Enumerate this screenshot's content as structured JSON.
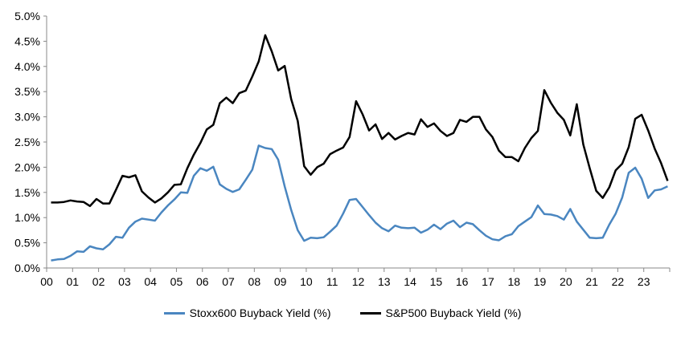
{
  "chart_data": {
    "type": "line",
    "title": "",
    "xlabel": "",
    "ylabel": "",
    "xlim": [
      2000,
      2024
    ],
    "ylim": [
      0,
      5
    ],
    "y_tick_step": 0.5,
    "y_tick_format": "percent-1dp",
    "x_ticks": [
      2000,
      2001,
      2002,
      2003,
      2004,
      2005,
      2006,
      2007,
      2008,
      2009,
      2010,
      2011,
      2012,
      2013,
      2014,
      2015,
      2016,
      2017,
      2018,
      2019,
      2020,
      2021,
      2022,
      2023
    ],
    "x_tick_labels": [
      "00",
      "01",
      "02",
      "03",
      "04",
      "05",
      "06",
      "07",
      "08",
      "09",
      "10",
      "11",
      "12",
      "13",
      "14",
      "15",
      "16",
      "17",
      "18",
      "19",
      "20",
      "21",
      "22",
      "23"
    ],
    "grid": false,
    "legend_position": "bottom",
    "frequency": "quarterly",
    "series": [
      {
        "name": "Stoxx600 Buyback Yield (%)",
        "color": "#4a86c0",
        "values": [
          0.15,
          0.17,
          0.18,
          0.24,
          0.33,
          0.32,
          0.43,
          0.39,
          0.37,
          0.47,
          0.62,
          0.6,
          0.8,
          0.92,
          0.98,
          0.96,
          0.94,
          1.1,
          1.24,
          1.36,
          1.5,
          1.49,
          1.83,
          1.98,
          1.93,
          2.01,
          1.66,
          1.57,
          1.51,
          1.56,
          1.75,
          1.95,
          2.43,
          2.38,
          2.36,
          2.15,
          1.62,
          1.15,
          0.75,
          0.54,
          0.6,
          0.59,
          0.61,
          0.72,
          0.84,
          1.08,
          1.35,
          1.37,
          1.21,
          1.05,
          0.9,
          0.79,
          0.73,
          0.84,
          0.8,
          0.79,
          0.8,
          0.7,
          0.76,
          0.86,
          0.77,
          0.88,
          0.94,
          0.81,
          0.9,
          0.87,
          0.75,
          0.64,
          0.57,
          0.55,
          0.63,
          0.67,
          0.83,
          0.92,
          1.01,
          1.24,
          1.07,
          1.06,
          1.03,
          0.96,
          1.17,
          0.92,
          0.76,
          0.6,
          0.59,
          0.6,
          0.86,
          1.08,
          1.4,
          1.89,
          1.99,
          1.77,
          1.39,
          1.54,
          1.56,
          1.62
        ]
      },
      {
        "name": "S&P500 Buyback Yield (%)",
        "color": "#000000",
        "values": [
          1.3,
          1.3,
          1.31,
          1.34,
          1.32,
          1.31,
          1.23,
          1.37,
          1.28,
          1.28,
          1.55,
          1.83,
          1.8,
          1.84,
          1.52,
          1.4,
          1.3,
          1.38,
          1.5,
          1.65,
          1.66,
          1.98,
          2.25,
          2.48,
          2.75,
          2.84,
          3.27,
          3.38,
          3.27,
          3.47,
          3.52,
          3.8,
          4.1,
          4.62,
          4.3,
          3.92,
          4.01,
          3.35,
          2.92,
          2.02,
          1.85,
          2.0,
          2.07,
          2.26,
          2.33,
          2.39,
          2.6,
          3.31,
          3.05,
          2.73,
          2.85,
          2.56,
          2.68,
          2.55,
          2.62,
          2.68,
          2.65,
          2.95,
          2.8,
          2.87,
          2.72,
          2.62,
          2.68,
          2.94,
          2.9,
          3.0,
          3.0,
          2.75,
          2.6,
          2.33,
          2.2,
          2.2,
          2.12,
          2.38,
          2.58,
          2.72,
          3.53,
          3.28,
          3.08,
          2.94,
          2.63,
          3.25,
          2.45,
          1.98,
          1.53,
          1.39,
          1.6,
          1.94,
          2.07,
          2.4,
          2.96,
          3.04,
          2.73,
          2.37,
          2.08,
          1.73
        ]
      }
    ]
  }
}
